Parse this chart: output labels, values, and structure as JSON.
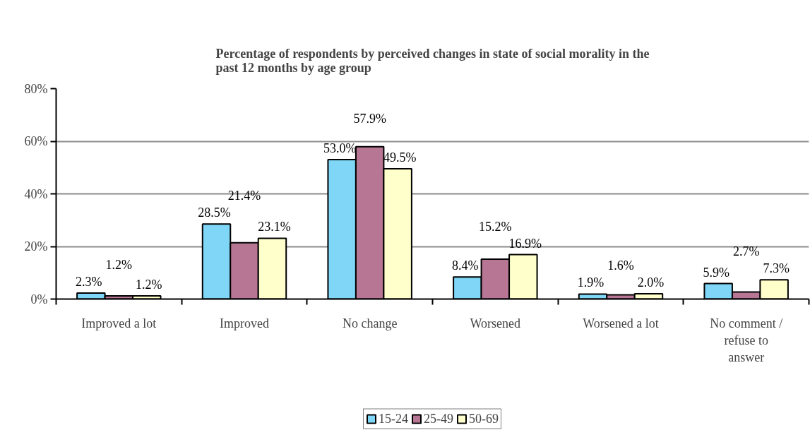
{
  "chart_data": {
    "type": "bar",
    "title": "Percentage of respondents by perceived changes in state of social morality in the past 12 months by age group",
    "categories": [
      "Improved a lot",
      "Improved",
      "No change",
      "Worsened",
      "Worsened a lot",
      "No comment / refuse to answer"
    ],
    "series": [
      {
        "name": "15-24",
        "color": "#7fd6f7",
        "values": [
          2.3,
          28.5,
          53.0,
          8.4,
          1.9,
          5.9
        ],
        "value_labels": [
          "2.3%",
          "28.5%",
          "53.0%",
          "8.4%",
          "1.9%",
          "5.9%"
        ]
      },
      {
        "name": "25-49",
        "color": "#b77794",
        "values": [
          1.2,
          21.4,
          57.9,
          15.2,
          1.6,
          2.7
        ],
        "value_labels": [
          "1.2%",
          "21.4%",
          "57.9%",
          "15.2%",
          "1.6%",
          "2.7%"
        ]
      },
      {
        "name": "50-69",
        "color": "#ffffcc",
        "values": [
          1.2,
          23.1,
          49.5,
          16.9,
          2.0,
          7.3
        ],
        "value_labels": [
          "1.2%",
          "23.1%",
          "49.5%",
          "16.9%",
          "2.0%",
          "7.3%"
        ]
      }
    ],
    "ylim": [
      0,
      80
    ],
    "yticks": [
      {
        "value": 0,
        "label": "0%"
      },
      {
        "value": 20,
        "label": "20%"
      },
      {
        "value": 40,
        "label": "40%"
      },
      {
        "value": 60,
        "label": "60%"
      },
      {
        "value": 80,
        "label": "80%"
      }
    ],
    "grid": "y",
    "legend": "bottom"
  }
}
